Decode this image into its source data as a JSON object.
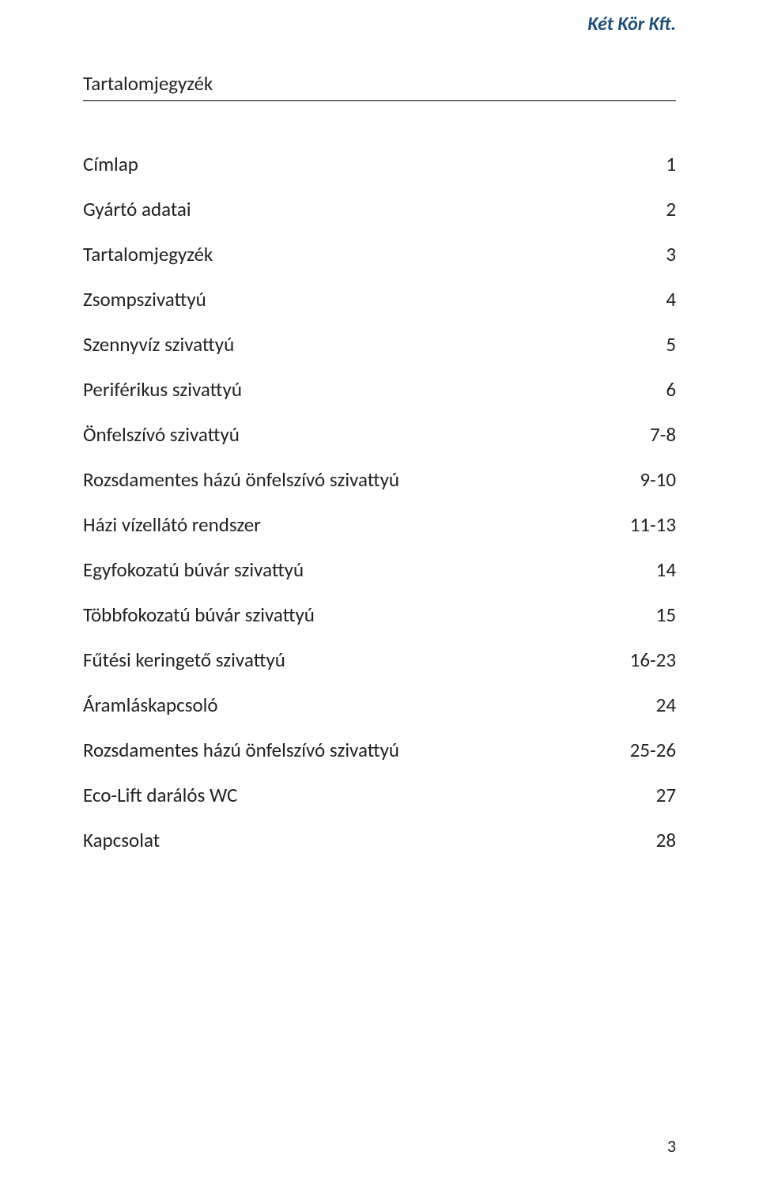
{
  "header": {
    "brand": "Két Kör Kft."
  },
  "section_title": "Tartalomjegyzék",
  "toc": [
    {
      "label": "Címlap",
      "page": "1"
    },
    {
      "label": "Gyártó adatai",
      "page": "2"
    },
    {
      "label": "Tartalomjegyzék",
      "page": "3"
    },
    {
      "label": "Zsompszivattyú",
      "page": "4"
    },
    {
      "label": "Szennyvíz szivattyú",
      "page": "5"
    },
    {
      "label": "Periférikus szivattyú",
      "page": "6"
    },
    {
      "label": "Önfelszívó szivattyú",
      "page": "7-8"
    },
    {
      "label": "Rozsdamentes házú önfelszívó szivattyú",
      "page": "9-10"
    },
    {
      "label": "Házi vízellátó rendszer",
      "page": "11-13"
    },
    {
      "label": "Egyfokozatú búvár szivattyú",
      "page": "14"
    },
    {
      "label": "Többfokozatú búvár szivattyú",
      "page": "15"
    },
    {
      "label": "Fűtési keringető szivattyú",
      "page": "16-23"
    },
    {
      "label": "Áramláskapcsoló",
      "page": "24"
    },
    {
      "label": "Rozsdamentes házú önfelszívó szivattyú",
      "page": "25-26"
    },
    {
      "label": "Eco-Lift darálós WC",
      "page": "27"
    },
    {
      "label": "Kapcsolat",
      "page": "28"
    }
  ],
  "page_number": "3",
  "colors": {
    "brand": "#1f4e79",
    "text": "#222222",
    "background": "#ffffff",
    "divider": "#000000"
  },
  "typography": {
    "brand_fontsize": 24,
    "title_fontsize": 25,
    "row_fontsize": 25,
    "pagenum_fontsize": 22
  }
}
